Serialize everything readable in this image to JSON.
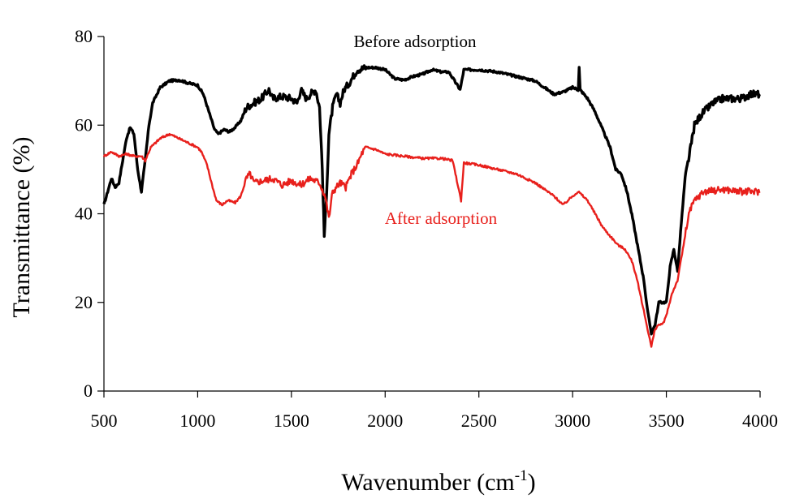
{
  "chart_data": {
    "type": "line",
    "title": "",
    "xlabel": "Wavenumber (cm",
    "xlabel_sup": "-1",
    "xlabel_close": ")",
    "ylabel": "Transmittance (%)",
    "xlim": [
      500,
      4000
    ],
    "ylim": [
      0,
      80
    ],
    "x_ticks": [
      "500",
      "1000",
      "1500",
      "2000",
      "2500",
      "3000",
      "3500",
      "4000"
    ],
    "y_ticks": [
      "0",
      "20",
      "40",
      "60",
      "80"
    ],
    "grid": false,
    "series": [
      {
        "name": "Before adsorption",
        "color": "#000000",
        "points": [
          [
            500,
            42
          ],
          [
            520,
            45
          ],
          [
            540,
            48
          ],
          [
            560,
            46
          ],
          [
            580,
            47
          ],
          [
            600,
            52
          ],
          [
            620,
            57
          ],
          [
            640,
            59.5
          ],
          [
            660,
            58
          ],
          [
            680,
            50
          ],
          [
            700,
            45
          ],
          [
            720,
            52
          ],
          [
            740,
            60
          ],
          [
            760,
            65
          ],
          [
            800,
            68.5
          ],
          [
            850,
            70
          ],
          [
            900,
            70.2
          ],
          [
            950,
            69.5
          ],
          [
            1000,
            69
          ],
          [
            1030,
            67
          ],
          [
            1060,
            63
          ],
          [
            1090,
            59
          ],
          [
            1110,
            58
          ],
          [
            1140,
            59
          ],
          [
            1170,
            58.5
          ],
          [
            1200,
            59.5
          ],
          [
            1230,
            61
          ],
          [
            1260,
            64
          ],
          [
            1300,
            65
          ],
          [
            1340,
            66
          ],
          [
            1380,
            68
          ],
          [
            1400,
            66
          ],
          [
            1450,
            66.5
          ],
          [
            1500,
            66
          ],
          [
            1530,
            65
          ],
          [
            1550,
            68
          ],
          [
            1580,
            66
          ],
          [
            1600,
            67
          ],
          [
            1630,
            68
          ],
          [
            1650,
            64
          ],
          [
            1665,
            50
          ],
          [
            1675,
            35
          ],
          [
            1685,
            42
          ],
          [
            1700,
            58
          ],
          [
            1720,
            64
          ],
          [
            1740,
            67
          ],
          [
            1760,
            65
          ],
          [
            1780,
            68
          ],
          [
            1800,
            69
          ],
          [
            1830,
            71
          ],
          [
            1850,
            72.5
          ],
          [
            1900,
            73
          ],
          [
            1950,
            73
          ],
          [
            2000,
            72.5
          ],
          [
            2050,
            70.5
          ],
          [
            2100,
            70.2
          ],
          [
            2150,
            71
          ],
          [
            2200,
            71.5
          ],
          [
            2250,
            72.5
          ],
          [
            2300,
            72
          ],
          [
            2340,
            72
          ],
          [
            2370,
            70
          ],
          [
            2400,
            68
          ],
          [
            2420,
            72.5
          ],
          [
            2500,
            72.5
          ],
          [
            2600,
            72
          ],
          [
            2700,
            71
          ],
          [
            2800,
            70
          ],
          [
            2900,
            67
          ],
          [
            2950,
            67.5
          ],
          [
            3000,
            68.5
          ],
          [
            3030,
            68
          ],
          [
            3035,
            73
          ],
          [
            3040,
            68
          ],
          [
            3080,
            66
          ],
          [
            3120,
            63
          ],
          [
            3160,
            59
          ],
          [
            3200,
            55
          ],
          [
            3230,
            50
          ],
          [
            3260,
            49
          ],
          [
            3290,
            45
          ],
          [
            3320,
            39
          ],
          [
            3350,
            32
          ],
          [
            3380,
            25
          ],
          [
            3400,
            18
          ],
          [
            3420,
            13
          ],
          [
            3440,
            15
          ],
          [
            3460,
            20
          ],
          [
            3480,
            20
          ],
          [
            3500,
            20
          ],
          [
            3520,
            28
          ],
          [
            3540,
            32
          ],
          [
            3560,
            27
          ],
          [
            3580,
            38
          ],
          [
            3600,
            48
          ],
          [
            3630,
            55
          ],
          [
            3650,
            60
          ],
          [
            3680,
            62
          ],
          [
            3700,
            63
          ],
          [
            3750,
            65
          ],
          [
            3800,
            66
          ],
          [
            3850,
            66
          ],
          [
            3900,
            66
          ],
          [
            3950,
            67
          ],
          [
            4000,
            67
          ]
        ]
      },
      {
        "name": "After adsorption",
        "color": "#e8201c",
        "points": [
          [
            500,
            53
          ],
          [
            540,
            54
          ],
          [
            580,
            53
          ],
          [
            620,
            53.5
          ],
          [
            660,
            53
          ],
          [
            700,
            53
          ],
          [
            720,
            52
          ],
          [
            750,
            55
          ],
          [
            800,
            57
          ],
          [
            850,
            58
          ],
          [
            900,
            57
          ],
          [
            950,
            56
          ],
          [
            1000,
            55
          ],
          [
            1020,
            54
          ],
          [
            1050,
            51
          ],
          [
            1080,
            46
          ],
          [
            1100,
            43
          ],
          [
            1130,
            42
          ],
          [
            1160,
            43
          ],
          [
            1200,
            42.5
          ],
          [
            1230,
            44
          ],
          [
            1260,
            48
          ],
          [
            1280,
            49
          ],
          [
            1300,
            47
          ],
          [
            1350,
            47.5
          ],
          [
            1400,
            48
          ],
          [
            1450,
            46.5
          ],
          [
            1500,
            47.5
          ],
          [
            1550,
            46.5
          ],
          [
            1600,
            48
          ],
          [
            1650,
            47
          ],
          [
            1680,
            44
          ],
          [
            1700,
            39
          ],
          [
            1720,
            45
          ],
          [
            1760,
            47
          ],
          [
            1790,
            46
          ],
          [
            1820,
            49
          ],
          [
            1850,
            51
          ],
          [
            1880,
            54
          ],
          [
            1900,
            55
          ],
          [
            1950,
            54.5
          ],
          [
            2000,
            53.5
          ],
          [
            2100,
            53
          ],
          [
            2200,
            52.5
          ],
          [
            2300,
            52.5
          ],
          [
            2360,
            52
          ],
          [
            2390,
            46
          ],
          [
            2405,
            43
          ],
          [
            2420,
            51.5
          ],
          [
            2500,
            51
          ],
          [
            2600,
            50
          ],
          [
            2700,
            49
          ],
          [
            2800,
            47
          ],
          [
            2900,
            44
          ],
          [
            2950,
            42
          ],
          [
            3000,
            44
          ],
          [
            3030,
            45
          ],
          [
            3080,
            43
          ],
          [
            3120,
            40
          ],
          [
            3160,
            37
          ],
          [
            3200,
            35
          ],
          [
            3240,
            33
          ],
          [
            3280,
            32
          ],
          [
            3320,
            29
          ],
          [
            3350,
            24
          ],
          [
            3380,
            18
          ],
          [
            3400,
            14
          ],
          [
            3420,
            10
          ],
          [
            3440,
            14
          ],
          [
            3460,
            15
          ],
          [
            3480,
            15
          ],
          [
            3500,
            17
          ],
          [
            3530,
            22
          ],
          [
            3560,
            25
          ],
          [
            3580,
            30
          ],
          [
            3620,
            40
          ],
          [
            3650,
            43
          ],
          [
            3700,
            45
          ],
          [
            3800,
            45.5
          ],
          [
            3900,
            45
          ],
          [
            4000,
            45
          ]
        ]
      }
    ]
  }
}
